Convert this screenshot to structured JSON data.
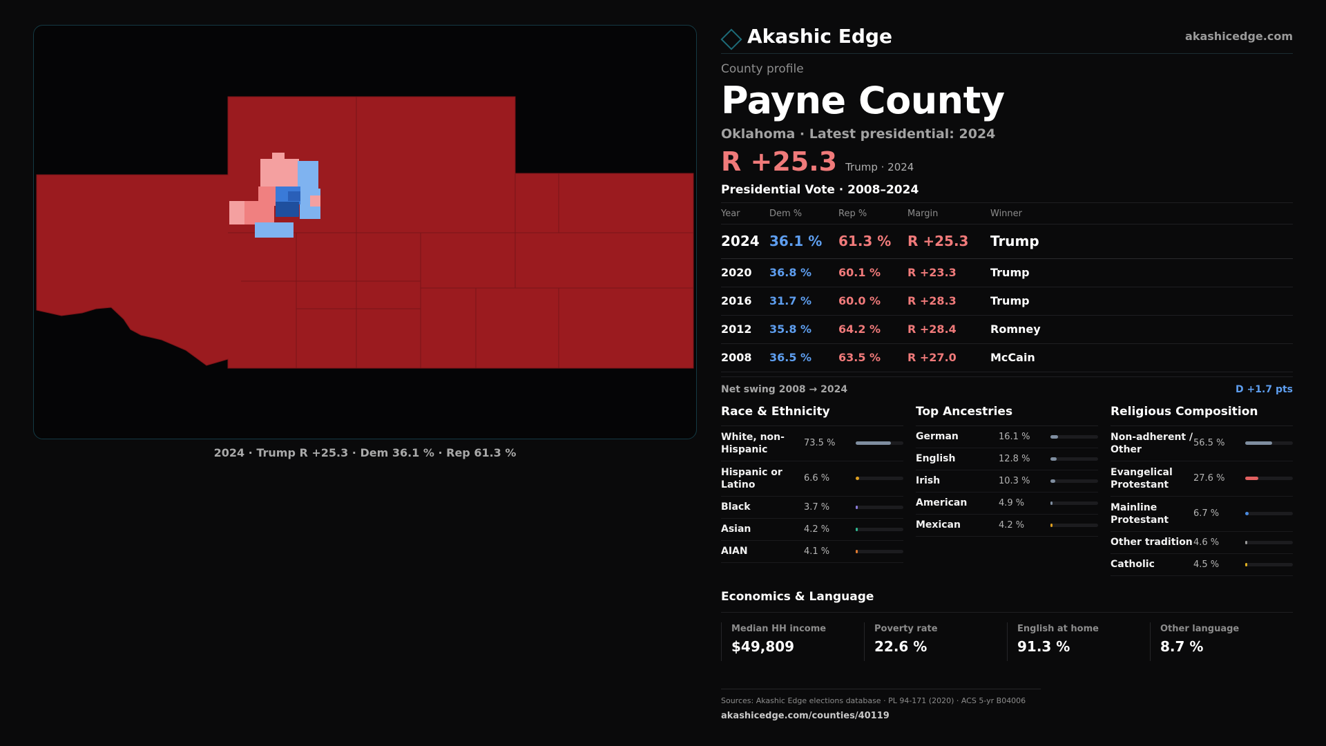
{
  "brand": {
    "name": "Akashic Edge",
    "url": "akashicedge.com"
  },
  "colors": {
    "rep": "#f07a7a",
    "dem": "#5e9eef",
    "accent": "#1d6b78"
  },
  "profile": {
    "eyebrow": "County profile",
    "county": "Payne County",
    "subtitle": "Oklahoma · Latest presidential: 2024",
    "margin": "R +25.3",
    "margin_note": "Trump · 2024"
  },
  "map": {
    "caption": "2024 · Trump R +25.3 · Dem 36.1 % · Rep 61.3 %"
  },
  "votes": {
    "title": "Presidential Vote · 2008–2024",
    "headers": {
      "year": "Year",
      "dem": "Dem %",
      "rep": "Rep %",
      "margin": "Margin",
      "winner": "Winner"
    },
    "rows": [
      {
        "year": "2024",
        "dem": "36.1 %",
        "rep": "61.3 %",
        "margin": "R +25.3",
        "winner": "Trump"
      },
      {
        "year": "2020",
        "dem": "36.8 %",
        "rep": "60.1 %",
        "margin": "R +23.3",
        "winner": "Trump"
      },
      {
        "year": "2016",
        "dem": "31.7 %",
        "rep": "60.0 %",
        "margin": "R +28.3",
        "winner": "Trump"
      },
      {
        "year": "2012",
        "dem": "35.8 %",
        "rep": "64.2 %",
        "margin": "R +28.4",
        "winner": "Romney"
      },
      {
        "year": "2008",
        "dem": "36.5 %",
        "rep": "63.5 %",
        "margin": "R +27.0",
        "winner": "McCain"
      }
    ],
    "swing_label": "Net swing 2008 → 2024",
    "swing_value": "D +1.7 pts"
  },
  "race": {
    "title": "Race & Ethnicity",
    "items": [
      {
        "label": "White, non-Hispanic",
        "pct": "73.5 %",
        "share": 0.735,
        "color": "#7f8ea0"
      },
      {
        "label": "Hispanic or Latino",
        "pct": "6.6 %",
        "share": 0.066,
        "color": "#e0a020"
      },
      {
        "label": "Black",
        "pct": "3.7 %",
        "share": 0.037,
        "color": "#8a7ad8"
      },
      {
        "label": "Asian",
        "pct": "4.2 %",
        "share": 0.042,
        "color": "#2fb890"
      },
      {
        "label": "AIAN",
        "pct": "4.1 %",
        "share": 0.041,
        "color": "#e07a30"
      }
    ]
  },
  "ancestry": {
    "title": "Top Ancestries",
    "items": [
      {
        "label": "German",
        "pct": "16.1 %",
        "share": 0.161,
        "color": "#7f8ea0"
      },
      {
        "label": "English",
        "pct": "12.8 %",
        "share": 0.128,
        "color": "#7f8ea0"
      },
      {
        "label": "Irish",
        "pct": "10.3 %",
        "share": 0.103,
        "color": "#7f8ea0"
      },
      {
        "label": "American",
        "pct": "4.9 %",
        "share": 0.049,
        "color": "#7f8ea0"
      },
      {
        "label": "Mexican",
        "pct": "4.2 %",
        "share": 0.042,
        "color": "#e0a020"
      }
    ]
  },
  "religion": {
    "title": "Religious Composition",
    "items": [
      {
        "label": "Non-adherent / Other",
        "pct": "56.5 %",
        "share": 0.565,
        "color": "#7f8ea0"
      },
      {
        "label": "Evangelical Protestant",
        "pct": "27.6 %",
        "share": 0.276,
        "color": "#e06060"
      },
      {
        "label": "Mainline Protestant",
        "pct": "6.7 %",
        "share": 0.067,
        "color": "#4a8ae0"
      },
      {
        "label": "Other tradition",
        "pct": "4.6 %",
        "share": 0.046,
        "color": "#9a9a9a"
      },
      {
        "label": "Catholic",
        "pct": "4.5 %",
        "share": 0.045,
        "color": "#e0b020"
      }
    ]
  },
  "economics": {
    "title": "Economics & Language",
    "items": [
      {
        "label": "Median HH income",
        "value": "$49,809"
      },
      {
        "label": "Poverty rate",
        "value": "22.6 %"
      },
      {
        "label": "English at home",
        "value": "91.3 %"
      },
      {
        "label": "Other language",
        "value": "8.7 %"
      }
    ]
  },
  "footer": {
    "sources": "Sources: Akashic Edge elections database · PL 94-171 (2020) · ACS 5-yr B04006",
    "url": "akashicedge.com/counties/40119"
  }
}
